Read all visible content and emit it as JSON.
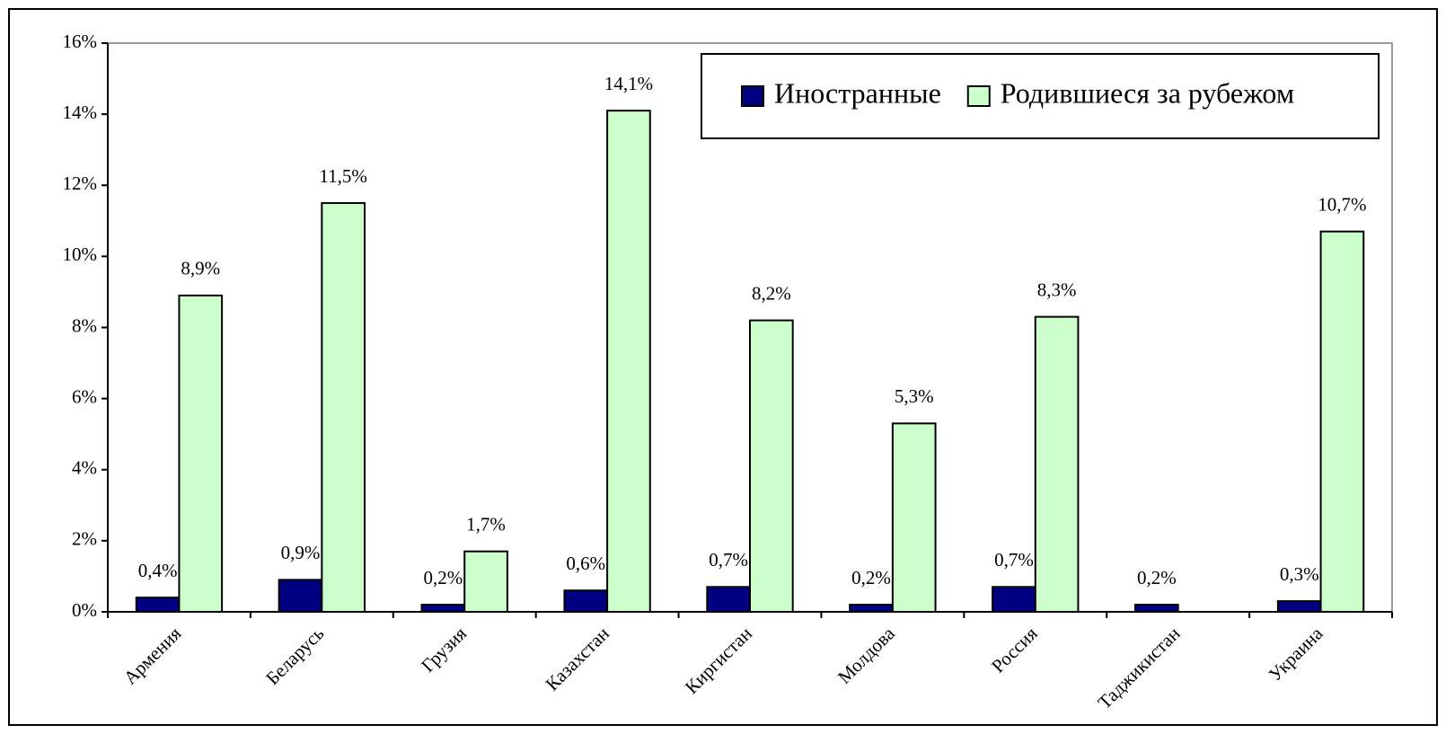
{
  "chart_data": {
    "type": "bar",
    "categories": [
      "Армения",
      "Беларусь",
      "Грузия",
      "Казахстан",
      "Киргистан",
      "Молдова",
      "Россия",
      "Таджикистан",
      "Украина"
    ],
    "series": [
      {
        "name": "Иностранные",
        "color": "#000080",
        "values": [
          0.4,
          0.9,
          0.2,
          0.6,
          0.7,
          0.2,
          0.7,
          0.2,
          0.3
        ],
        "value_labels": [
          "0,4%",
          "0,9%",
          "0,2%",
          "0,6%",
          "0,7%",
          "0,2%",
          "0,7%",
          "0,2%",
          "0,3%"
        ]
      },
      {
        "name": "Родившиеся за рубежом",
        "color": "#ccffcc",
        "values": [
          8.9,
          11.5,
          1.7,
          14.1,
          8.2,
          5.3,
          8.3,
          null,
          10.7
        ],
        "value_labels": [
          "8,9%",
          "11,5%",
          "1,7%",
          "14,1%",
          "8,2%",
          "5,3%",
          "8,3%",
          null,
          "10,7%"
        ]
      }
    ],
    "ylim": [
      0,
      16
    ],
    "yticks": [
      {
        "value": 0,
        "label": "0%"
      },
      {
        "value": 2,
        "label": "2%"
      },
      {
        "value": 4,
        "label": "4%"
      },
      {
        "value": 6,
        "label": "6%"
      },
      {
        "value": 8,
        "label": "8%"
      },
      {
        "value": 10,
        "label": "10%"
      },
      {
        "value": 12,
        "label": "12%"
      },
      {
        "value": 14,
        "label": "14%"
      },
      {
        "value": 16,
        "label": "16%"
      }
    ],
    "grid": false,
    "legend": "top-right"
  }
}
